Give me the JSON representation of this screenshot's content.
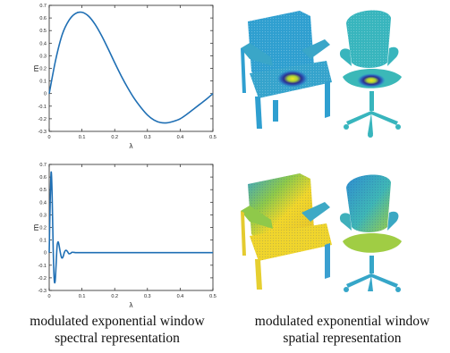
{
  "chart_data": [
    {
      "type": "line",
      "title": "",
      "xlabel": "λ",
      "ylabel": "m",
      "xlim": [
        0,
        0.5
      ],
      "ylim": [
        -0.3,
        0.7
      ],
      "xticks": [
        "0",
        "0.1",
        "0.2",
        "0.3",
        "0.4",
        "0.5"
      ],
      "yticks": [
        "-0.3",
        "-0.2",
        "-0.1",
        "0",
        "0.1",
        "0.2",
        "0.3",
        "0.4",
        "0.5",
        "0.6",
        "0.7"
      ],
      "grid": false,
      "color": "#1f6fb4",
      "x": [
        0,
        0.02,
        0.04,
        0.06,
        0.08,
        0.1,
        0.12,
        0.14,
        0.16,
        0.18,
        0.2,
        0.22,
        0.24,
        0.26,
        0.28,
        0.3,
        0.32,
        0.34,
        0.36,
        0.38,
        0.4,
        0.42,
        0.44,
        0.46,
        0.48,
        0.5
      ],
      "y": [
        0.0,
        0.27,
        0.47,
        0.58,
        0.635,
        0.645,
        0.615,
        0.55,
        0.46,
        0.355,
        0.245,
        0.14,
        0.045,
        -0.04,
        -0.11,
        -0.17,
        -0.21,
        -0.23,
        -0.232,
        -0.22,
        -0.2,
        -0.165,
        -0.125,
        -0.085,
        -0.045,
        0.0
      ]
    },
    {
      "type": "line",
      "title": "",
      "xlabel": "λ",
      "ylabel": "m",
      "xlim": [
        0,
        0.5
      ],
      "ylim": [
        -0.3,
        0.7
      ],
      "xticks": [
        "0",
        "0.1",
        "0.2",
        "0.3",
        "0.4",
        "0.5"
      ],
      "yticks": [
        "-0.3",
        "-0.2",
        "-0.1",
        "0",
        "0.1",
        "0.2",
        "0.3",
        "0.4",
        "0.5",
        "0.6",
        "0.7"
      ],
      "grid": false,
      "color": "#1f6fb4",
      "x": [
        0,
        0.003,
        0.006,
        0.009,
        0.012,
        0.015,
        0.018,
        0.021,
        0.024,
        0.027,
        0.03,
        0.034,
        0.038,
        0.042,
        0.046,
        0.05,
        0.055,
        0.06,
        0.065,
        0.07,
        0.08,
        0.09,
        0.1,
        0.2,
        0.3,
        0.4,
        0.5
      ],
      "y": [
        0.0,
        0.4,
        0.64,
        0.45,
        0.05,
        -0.2,
        -0.23,
        -0.1,
        0.05,
        0.085,
        0.06,
        0.0,
        -0.04,
        -0.035,
        0.0,
        0.018,
        0.012,
        -0.008,
        -0.006,
        0.003,
        0.0,
        0.0,
        0.0,
        0.0,
        0.0,
        0.0,
        0.0
      ]
    }
  ],
  "captions": {
    "left_line1": "modulated exponential window",
    "left_line2": "spectral representation",
    "right_line1": "modulated exponential window",
    "right_line2": "spatial representation"
  },
  "colors": {
    "chair_base": "#2f9fd0",
    "chair_alt": "#38b5bd",
    "hot": "#f4e61e",
    "warm": "#a6cf3b",
    "cold": "#2b2f8f"
  }
}
